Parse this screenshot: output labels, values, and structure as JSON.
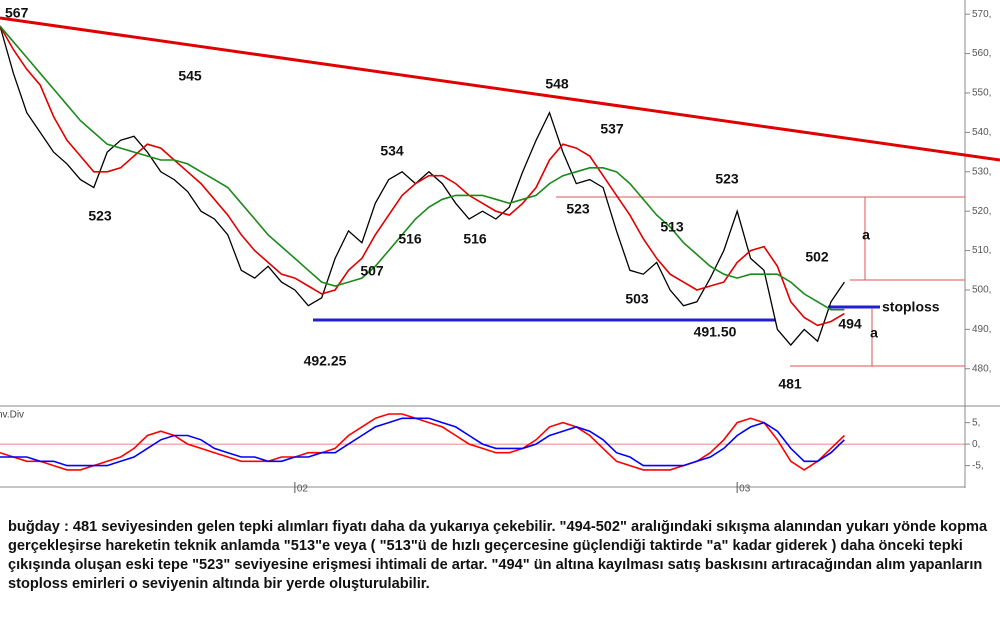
{
  "chart_data": [
    {
      "type": "line",
      "xlim": [
        0,
        72
      ],
      "ylim": [
        470.8,
        573.6
      ],
      "yticks": [
        {
          "value": 480,
          "label": "480,"
        },
        {
          "value": 490,
          "label": "490,"
        },
        {
          "value": 500,
          "label": "500,"
        },
        {
          "value": 510,
          "label": "510,"
        },
        {
          "value": 520,
          "label": "520,"
        },
        {
          "value": 530,
          "label": "530,"
        },
        {
          "value": 540,
          "label": "540,"
        },
        {
          "value": 550,
          "label": "550,"
        },
        {
          "value": 560,
          "label": "560,"
        },
        {
          "value": 570,
          "label": "570,"
        }
      ],
      "series": [
        {
          "color": "#000000",
          "values": [
            567,
            555,
            545,
            540,
            535,
            532,
            528,
            526,
            535,
            538,
            539,
            535,
            530,
            528,
            525,
            520,
            518,
            514,
            505,
            503,
            506,
            502,
            500,
            496,
            498,
            508,
            515,
            512,
            522,
            528,
            530,
            527,
            530,
            527,
            522,
            518,
            520,
            518,
            521,
            530,
            538,
            545,
            535,
            527,
            528,
            526,
            515,
            505,
            504,
            507,
            500,
            496,
            497,
            503,
            510,
            520,
            508,
            505,
            490,
            486,
            490,
            487,
            497,
            502
          ]
        },
        {
          "color": "#e00000",
          "values": [
            567,
            561,
            556,
            552,
            544,
            538,
            534,
            530,
            530,
            531,
            534,
            537,
            536,
            533,
            530,
            527,
            523,
            519,
            514,
            510,
            507,
            504,
            503,
            501,
            499,
            500,
            505,
            508,
            514,
            519,
            524,
            527,
            529,
            529,
            527,
            524,
            522,
            520,
            519,
            522,
            526,
            533,
            537,
            536,
            534,
            529,
            524,
            519,
            513,
            508,
            504,
            502,
            500,
            501,
            502,
            507,
            510,
            511,
            506,
            497,
            493,
            491,
            492,
            494
          ]
        },
        {
          "color": "#1a8a1a",
          "values": [
            567,
            563,
            559,
            555,
            551,
            547,
            543,
            540,
            537,
            536,
            535,
            534,
            533,
            533,
            532,
            530,
            528,
            526,
            522,
            518,
            514,
            511,
            508,
            505,
            502,
            501,
            502,
            503,
            506,
            510,
            514,
            518,
            521,
            523,
            524,
            524,
            524,
            523,
            522,
            523,
            524,
            527,
            529,
            530,
            531,
            531,
            530,
            527,
            523,
            519,
            516,
            512,
            509,
            506,
            504,
            503,
            504,
            504,
            504,
            502,
            499,
            497,
            495,
            495
          ]
        }
      ],
      "annotations": [
        "567",
        "545",
        "523",
        "534",
        "516",
        "507",
        "516",
        "548",
        "537",
        "523",
        "513",
        "523",
        "503",
        "491.50",
        "502",
        "494",
        "481",
        "492.25",
        "a",
        "a",
        "stoploss"
      ]
    },
    {
      "type": "line",
      "title": "nv.Div",
      "xlim": [
        0,
        72
      ],
      "xticks": [
        {
          "value": 22,
          "label": "02"
        },
        {
          "value": 55,
          "label": "03"
        }
      ],
      "ylim": [
        -9.5,
        8.4
      ],
      "yticks": [
        {
          "value": -5,
          "label": "-5,"
        },
        {
          "value": 0,
          "label": "0,"
        },
        {
          "value": 5,
          "label": "5,"
        }
      ],
      "series": [
        {
          "color": "#ff0000",
          "values": [
            -2,
            -3,
            -4,
            -4,
            -5,
            -6,
            -6,
            -5,
            -4,
            -3,
            -1,
            2,
            3,
            2,
            0,
            -1,
            -2,
            -3,
            -4,
            -4,
            -4,
            -3,
            -3,
            -2,
            -2,
            -1,
            2,
            4,
            6,
            7,
            7,
            6,
            5,
            4,
            2,
            0,
            -1,
            -2,
            -2,
            -1,
            1,
            4,
            5,
            4,
            2,
            -1,
            -4,
            -5,
            -6,
            -6,
            -6,
            -5,
            -4,
            -2,
            1,
            5,
            6,
            5,
            1,
            -4,
            -6,
            -4,
            -1,
            2
          ]
        },
        {
          "color": "#0000ff",
          "values": [
            -3,
            -3,
            -3,
            -4,
            -4,
            -5,
            -5,
            -5,
            -5,
            -4,
            -3,
            -1,
            1,
            2,
            2,
            1,
            -1,
            -2,
            -3,
            -3,
            -4,
            -4,
            -3,
            -3,
            -2,
            -2,
            0,
            2,
            4,
            5,
            6,
            6,
            6,
            5,
            4,
            2,
            0,
            -1,
            -1,
            -1,
            0,
            2,
            3,
            4,
            3,
            1,
            -2,
            -3,
            -5,
            -5,
            -5,
            -5,
            -4,
            -3,
            -1,
            2,
            4,
            5,
            3,
            -1,
            -4,
            -4,
            -2,
            1
          ]
        }
      ]
    }
  ],
  "description": "buğday : 481 seviyesinden gelen tepki alımları fiyatı daha da yukarıya çekebilir. \"494-502\" aralığındaki sıkışma alanından yukarı yönde kopma gerçekleşirse hareketin teknik anlamda \"513\"e veya ( \"513\"ü de hızlı geçercesine güçlendiği taktirde \"a\" kadar giderek ) daha önceki tepki çıkışında oluşan eski tepe \"523\" seviyesine erişmesi ihtimali de artar. \"494\" ün altına kayılması satış baskısını artıracağından alım yapanların stoploss emirleri o seviyenin altında bir yerde oluşturulabilir."
}
